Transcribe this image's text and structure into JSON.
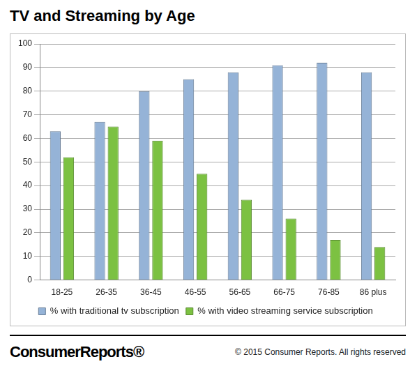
{
  "chart_data": {
    "type": "bar",
    "title": "TV and Streaming by Age",
    "categories": [
      "18-25",
      "26-35",
      "36-45",
      "46-55",
      "56-65",
      "66-75",
      "76-85",
      "86 plus"
    ],
    "series": [
      {
        "name": "% with traditional tv subscription",
        "color": "#95b3d7",
        "values": [
          63,
          67,
          80,
          85,
          88,
          91,
          92,
          88
        ]
      },
      {
        "name": "% with video streaming service subscription",
        "color": "#7cc142",
        "values": [
          52,
          65,
          59,
          45,
          34,
          26,
          17,
          14
        ]
      }
    ],
    "ylim": [
      0,
      100
    ],
    "yticks": [
      0,
      10,
      20,
      30,
      40,
      50,
      60,
      70,
      80,
      90,
      100
    ],
    "grid": true,
    "legend": "bottom",
    "annotations": [
      "ConsumerReports®",
      "© 2015 Consumer Reports. All rights reserved"
    ]
  }
}
